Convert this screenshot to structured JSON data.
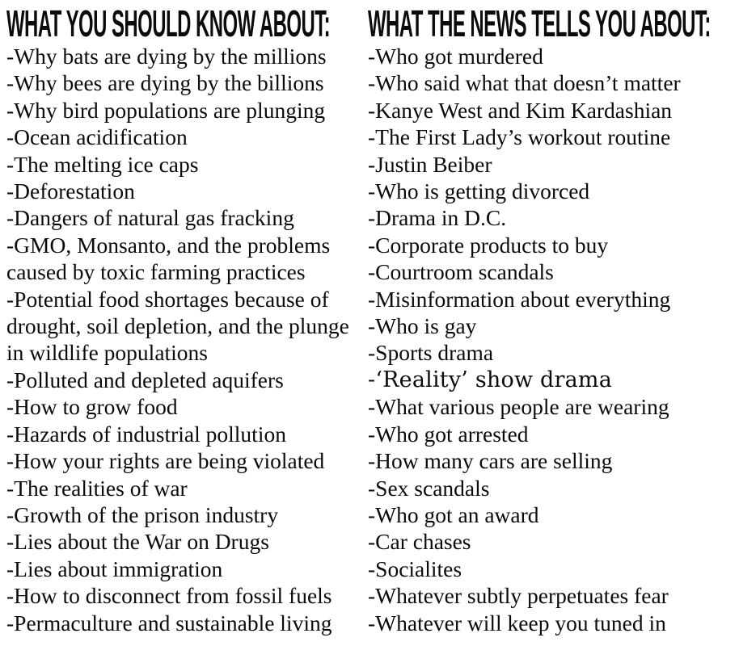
{
  "page": {
    "background_color": "#ffffff",
    "text_color": "#0b0b0b"
  },
  "left_column": {
    "heading": "WHAT YOU SHOULD KNOW ABOUT:",
    "items": [
      {
        "text": "-Why bats are dying by the millions"
      },
      {
        "text": "-Why bees are dying by the billions"
      },
      {
        "text": "-Why bird populations are plunging"
      },
      {
        "text": "-Ocean acidification"
      },
      {
        "text": "-The melting ice caps"
      },
      {
        "text": "-Deforestation"
      },
      {
        "text": "-Dangers of natural gas fracking"
      },
      {
        "text": "-GMO, Monsanto, and the problems caused by toxic farming practices"
      },
      {
        "text": "-Potential food shortages because of drought, soil depletion, and the plunge in wildlife populations"
      },
      {
        "text": "-Polluted and depleted aquifers"
      },
      {
        "text": "-How to grow food"
      },
      {
        "text": "-Hazards of industrial pollution"
      },
      {
        "text": "-How your rights are being violated"
      },
      {
        "text": "-The realities of war"
      },
      {
        "text": "-Growth of the prison industry"
      },
      {
        "text": "-Lies about the War on Drugs"
      },
      {
        "text": "-Lies about immigration"
      },
      {
        "text": "-How to disconnect from fossil fuels"
      },
      {
        "text": "-Permaculture and sustainable living"
      }
    ]
  },
  "right_column": {
    "heading": "WHAT THE NEWS TELLS YOU ABOUT:",
    "items": [
      {
        "text": "-Who got murdered"
      },
      {
        "text": "-Who said what that doesn’t matter"
      },
      {
        "text": "-Kanye West and Kim Kardashian"
      },
      {
        "text": "-The First Lady’s workout routine"
      },
      {
        "text": "-Justin Beiber"
      },
      {
        "text": "-Who is getting divorced"
      },
      {
        "text": "-Drama in D.C."
      },
      {
        "text": "-Corporate products to buy"
      },
      {
        "text": "-Courtroom scandals"
      },
      {
        "text": "-Misinformation about everything"
      },
      {
        "text": "-Who is gay"
      },
      {
        "text": "-Sports drama"
      },
      {
        "text": "-‘Reality’ show drama",
        "alt": true
      },
      {
        "text": "-What various people are wearing"
      },
      {
        "text": "-Who got arrested"
      },
      {
        "text": "-How many cars are selling"
      },
      {
        "text": "-Sex scandals"
      },
      {
        "text": "-Who got an award"
      },
      {
        "text": "-Car chases"
      },
      {
        "text": "-Socialites"
      },
      {
        "text": "-Whatever subtly perpetuates fear"
      },
      {
        "text": "-Whatever will keep you tuned in"
      }
    ]
  }
}
